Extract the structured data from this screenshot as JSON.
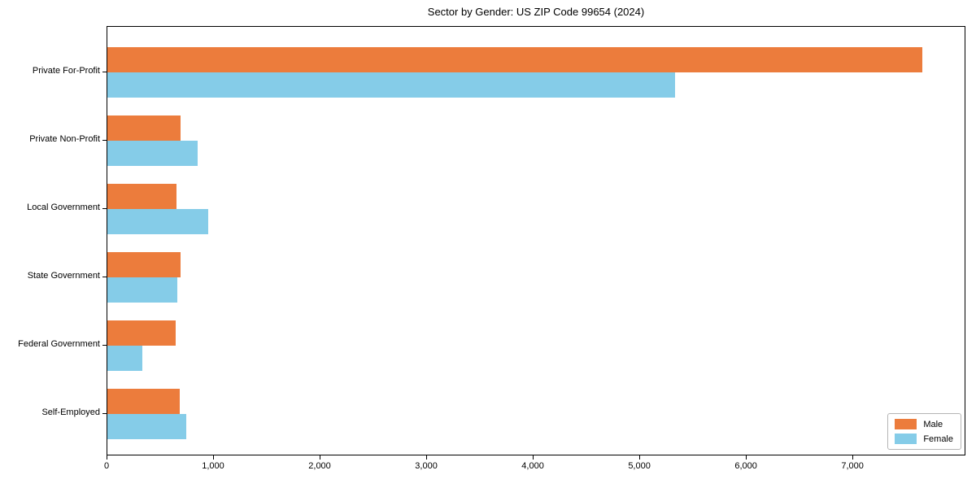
{
  "title": "Sector by Gender: US ZIP Code 99654 (2024)",
  "chart_data": {
    "type": "bar",
    "orientation": "horizontal",
    "title": "Sector by Gender: US ZIP Code 99654 (2024)",
    "categories": [
      "Private For-Profit",
      "Private Non-Profit",
      "Local Government",
      "State Government",
      "Federal Government",
      "Self-Employed"
    ],
    "series": [
      {
        "name": "Male",
        "color": "#ec7c3c",
        "values": [
          7650,
          690,
          650,
          690,
          640,
          680
        ]
      },
      {
        "name": "Female",
        "color": "#85cce8",
        "values": [
          5330,
          850,
          950,
          660,
          330,
          740
        ]
      }
    ],
    "xlabel": "",
    "ylabel": "",
    "xlim": [
      0,
      8060
    ],
    "xticks": [
      0,
      1000,
      2000,
      3000,
      4000,
      5000,
      6000,
      7000
    ],
    "xtick_labels": [
      "0",
      "1,000",
      "2,000",
      "3,000",
      "4,000",
      "5,000",
      "6,000",
      "7,000"
    ],
    "grid": false,
    "legend": {
      "position": "lower right",
      "entries": [
        "Male",
        "Female"
      ]
    }
  }
}
